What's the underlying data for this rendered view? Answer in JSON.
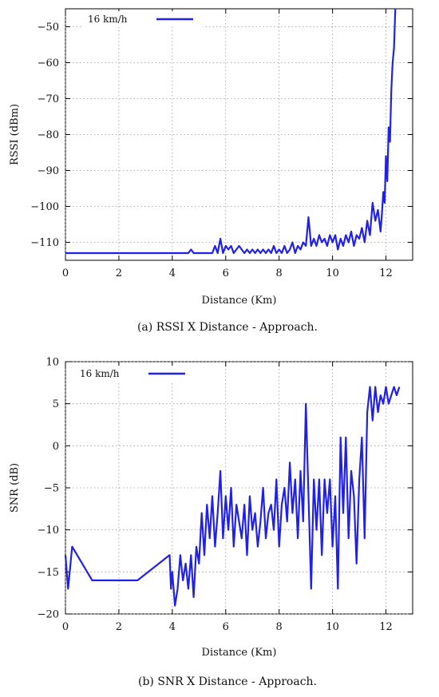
{
  "chart_data": [
    {
      "type": "line",
      "caption": "(a) RSSI X Distance - Approach.",
      "xlabel": "Distance (Km)",
      "ylabel": "RSSI (dBm)",
      "xlim": [
        0,
        13
      ],
      "ylim": [
        -115,
        -45
      ],
      "xticks": [
        0,
        2,
        4,
        6,
        8,
        10,
        12
      ],
      "yticks": [
        -50,
        -60,
        -70,
        -80,
        -90,
        -100,
        -110
      ],
      "xtick_labels": [
        "0",
        "2",
        "4",
        "6",
        "8",
        "10",
        "12"
      ],
      "ytick_labels": [
        "−50",
        "−60",
        "−70",
        "−80",
        "−90",
        "−100",
        "−110"
      ],
      "legend_position": "top-left",
      "series": [
        {
          "name": "16 km/h",
          "color": "#2020ee",
          "x": [
            0,
            4.6,
            4.7,
            4.8,
            5.5,
            5.6,
            5.7,
            5.8,
            5.9,
            6.0,
            6.1,
            6.2,
            6.3,
            6.4,
            6.5,
            6.6,
            6.7,
            6.8,
            6.9,
            7.0,
            7.1,
            7.2,
            7.3,
            7.4,
            7.5,
            7.6,
            7.7,
            7.8,
            7.9,
            8.0,
            8.1,
            8.2,
            8.3,
            8.4,
            8.5,
            8.6,
            8.7,
            8.8,
            8.9,
            9.0,
            9.1,
            9.2,
            9.3,
            9.4,
            9.5,
            9.6,
            9.7,
            9.8,
            9.9,
            10.0,
            10.1,
            10.2,
            10.3,
            10.4,
            10.5,
            10.6,
            10.7,
            10.8,
            10.9,
            11.0,
            11.1,
            11.2,
            11.3,
            11.4,
            11.5,
            11.6,
            11.7,
            11.8,
            11.85,
            11.9,
            11.95,
            12.0,
            12.05,
            12.1,
            12.15,
            12.2,
            12.25,
            12.3,
            12.35
          ],
          "y": [
            -113,
            -113,
            -112,
            -113,
            -113,
            -111,
            -113,
            -109,
            -113,
            -111,
            -112,
            -111,
            -113,
            -112,
            -111,
            -112,
            -113,
            -112,
            -113,
            -112,
            -113,
            -112,
            -113,
            -112,
            -113,
            -112,
            -113,
            -111,
            -113,
            -112,
            -113,
            -111,
            -113,
            -112,
            -110,
            -113,
            -111,
            -112,
            -110,
            -111,
            -103,
            -111,
            -109,
            -111,
            -108,
            -110,
            -109,
            -111,
            -108,
            -110,
            -108,
            -112,
            -109,
            -111,
            -108,
            -110,
            -107,
            -111,
            -108,
            -109,
            -106,
            -110,
            -104,
            -108,
            -99,
            -104,
            -101,
            -107,
            -102,
            -96,
            -99,
            -86,
            -93,
            -78,
            -82,
            -68,
            -60,
            -56,
            -45
          ]
        }
      ]
    },
    {
      "type": "line",
      "caption": "(b) SNR X Distance - Approach.",
      "xlabel": "Distance (Km)",
      "ylabel": "SNR (dB)",
      "xlim": [
        0,
        13
      ],
      "ylim": [
        -20,
        10
      ],
      "xticks": [
        0,
        2,
        4,
        6,
        8,
        10,
        12
      ],
      "yticks": [
        10,
        5,
        0,
        -5,
        -10,
        -15,
        -20
      ],
      "xtick_labels": [
        "0",
        "2",
        "4",
        "6",
        "8",
        "10",
        "12"
      ],
      "ytick_labels": [
        "10",
        "5",
        "0",
        "−5",
        "−10",
        "−15",
        "−20"
      ],
      "legend_position": "top-left",
      "series": [
        {
          "name": "16 km/h",
          "color": "#2020ee",
          "x": [
            0,
            0.1,
            0.25,
            1.0,
            2.7,
            3.9,
            3.95,
            4.0,
            4.1,
            4.2,
            4.3,
            4.4,
            4.5,
            4.6,
            4.7,
            4.8,
            4.9,
            5.0,
            5.1,
            5.2,
            5.3,
            5.4,
            5.5,
            5.6,
            5.7,
            5.8,
            5.9,
            6.0,
            6.1,
            6.2,
            6.3,
            6.4,
            6.5,
            6.6,
            6.7,
            6.8,
            6.9,
            7.0,
            7.1,
            7.2,
            7.3,
            7.4,
            7.5,
            7.6,
            7.7,
            7.8,
            7.9,
            8.0,
            8.1,
            8.2,
            8.3,
            8.4,
            8.5,
            8.6,
            8.7,
            8.8,
            8.9,
            9.0,
            9.1,
            9.2,
            9.3,
            9.4,
            9.5,
            9.6,
            9.7,
            9.8,
            9.9,
            10.0,
            10.1,
            10.2,
            10.3,
            10.4,
            10.5,
            10.6,
            10.7,
            10.8,
            10.9,
            11.0,
            11.1,
            11.2,
            11.3,
            11.4,
            11.5,
            11.6,
            11.7,
            11.8,
            11.9,
            12.0,
            12.1,
            12.2,
            12.3,
            12.4,
            12.5
          ],
          "y": [
            -13,
            -17,
            -12,
            -16,
            -16,
            -13,
            -17,
            -15,
            -19,
            -17,
            -13,
            -16,
            -14,
            -17,
            -13,
            -18,
            -12,
            -14,
            -8,
            -13,
            -7,
            -11,
            -6,
            -12,
            -8,
            -3,
            -11,
            -6,
            -10,
            -5,
            -12,
            -7,
            -9,
            -11,
            -7,
            -13,
            -6,
            -10,
            -8,
            -12,
            -9,
            -5,
            -11,
            -8,
            -7,
            -10,
            -4,
            -12,
            -7,
            -5,
            -9,
            -2,
            -8,
            -4,
            -11,
            -3,
            -9,
            5,
            -6,
            -17,
            -4,
            -10,
            -4,
            -13,
            -4,
            -8,
            -4,
            -12,
            -6,
            -17,
            1,
            -8,
            1,
            -11,
            -3,
            -6,
            -14,
            -4,
            1,
            -11,
            4,
            7,
            3,
            7,
            4,
            6,
            5,
            7,
            5,
            6,
            7,
            6,
            7
          ]
        }
      ]
    }
  ]
}
